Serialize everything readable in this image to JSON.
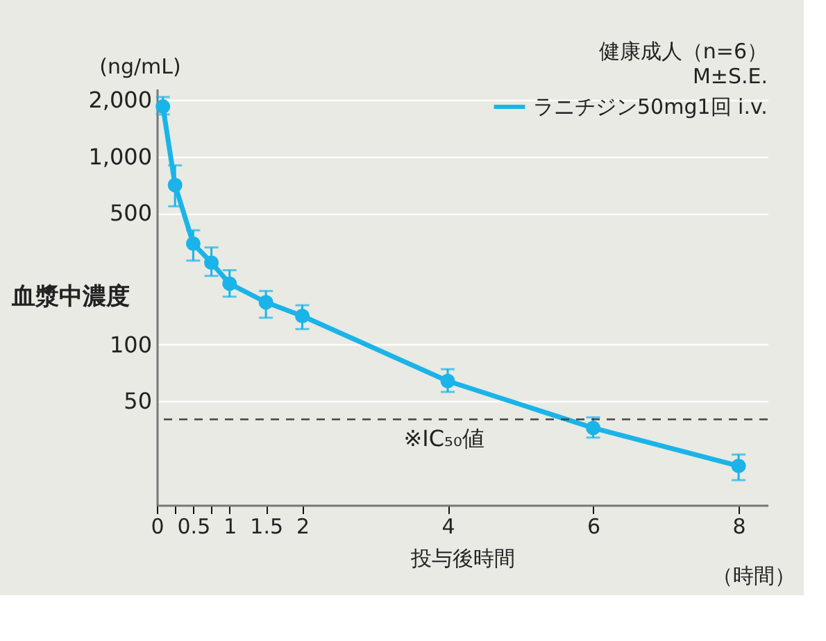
{
  "chart_data": {
    "type": "line",
    "xlabel": "投与後時間",
    "ylabel": "血漿中濃度",
    "x": [
      0.083,
      0.25,
      0.5,
      0.75,
      1,
      1.5,
      2,
      4,
      6,
      8
    ],
    "series": [
      {
        "name": "ラニチジン50mg1回 i.v.",
        "color": "#1ab4e8",
        "values": [
          1850,
          707,
          345,
          273,
          211,
          168,
          142,
          64,
          36,
          22.6
        ],
        "errors": [
          [
            1680,
            2080
          ],
          [
            545,
            900
          ],
          [
            280,
            406
          ],
          [
            232,
            329
          ],
          [
            180,
            249
          ],
          [
            139,
            193
          ],
          [
            121,
            162
          ],
          [
            56,
            74
          ],
          [
            32,
            41
          ],
          [
            19,
            26
          ]
        ]
      }
    ],
    "log": "y",
    "xlim": [
      0,
      8.4
    ],
    "xticks": [
      0,
      {
        "value": 0.25,
        "label": null
      },
      0.5,
      {
        "value": 0.75,
        "label": null
      },
      1,
      1.5,
      2,
      4,
      6,
      8
    ],
    "ylim": [
      14,
      2300
    ],
    "yticks": [
      50,
      100,
      500,
      {
        "value": 1000,
        "label": "1,000"
      },
      {
        "value": 2000,
        "label": "2,000"
      }
    ],
    "grid": "y",
    "legend": "top right",
    "marker": "circle",
    "line_style": "solid",
    "ref_lines": [
      {
        "axis": "y",
        "value": 40,
        "label": "※IC₅₀値",
        "color": "#444444",
        "line_style": "dashed"
      }
    ],
    "annotations": [
      "(ng/mL)",
      "健康成人（n=6）",
      "M±S.E.",
      "（時間）"
    ]
  }
}
